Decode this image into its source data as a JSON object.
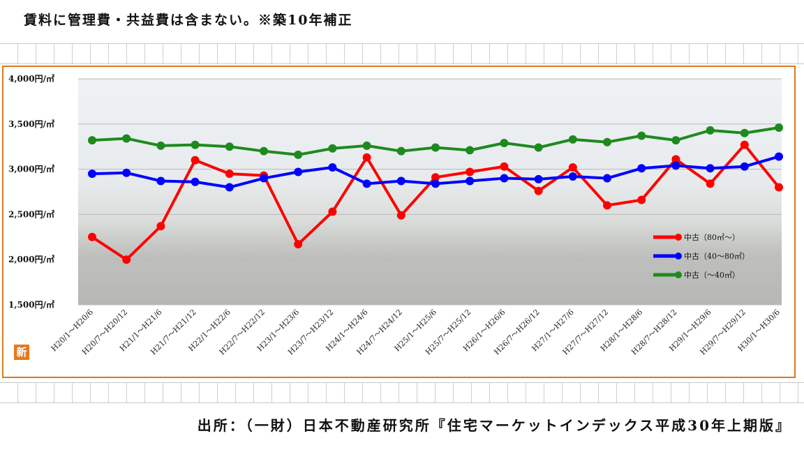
{
  "header": {
    "note": "賃料に管理費・共益費は含まない。※築10年補正"
  },
  "badge": {
    "label": "新"
  },
  "footer": {
    "source": "出所：（一財）日本不動産研究所『住宅マーケットインデックス平成30年上期版』"
  },
  "chart_data": {
    "type": "line",
    "title": "",
    "xlabel": "",
    "ylabel": "",
    "ylim": [
      1500,
      4000
    ],
    "yticks": [
      {
        "value": 4000,
        "label": "4,000円/㎡"
      },
      {
        "value": 3500,
        "label": "3,500円/㎡"
      },
      {
        "value": 3000,
        "label": "3,000円/㎡"
      },
      {
        "value": 2500,
        "label": "2,500円/㎡"
      },
      {
        "value": 2000,
        "label": "2,000円/㎡"
      },
      {
        "value": 1500,
        "label": "1,500円/㎡"
      }
    ],
    "grid": true,
    "legend_position": "right",
    "categories": [
      "H20/1～H20/6",
      "H20/7～H20/12",
      "H21/1～H21/6",
      "H21/7～H21/12",
      "H22/1～H22/6",
      "H22/7～H22/12",
      "H23/1～H23/6",
      "H23/7～H23/12",
      "H24/1～H24/6",
      "H24/7～H24/12",
      "H25/1～H25/6",
      "H25/7～H25/12",
      "H26/1～H26/6",
      "H26/7～H26/12",
      "H27/1～H27/6",
      "H27/7～H27/12",
      "H28/1～H28/6",
      "H28/7～H28/12",
      "H29/1～H29/6",
      "H29/7～H29/12",
      "H30/1～H30/6"
    ],
    "series": [
      {
        "name": "中古（80㎡～）",
        "color": "#ff0000",
        "values": [
          2250,
          2000,
          2370,
          3100,
          2950,
          2930,
          2170,
          2530,
          3130,
          2490,
          2910,
          2970,
          3030,
          2760,
          3020,
          2600,
          2660,
          3110,
          2840,
          3270,
          2800
        ]
      },
      {
        "name": "中古（40～80㎡）",
        "color": "#0000ff",
        "values": [
          2950,
          2960,
          2870,
          2860,
          2800,
          2900,
          2970,
          3020,
          2840,
          2870,
          2840,
          2870,
          2900,
          2890,
          2920,
          2900,
          3010,
          3040,
          3010,
          3030,
          3140
        ]
      },
      {
        "name": "中古（～40㎡）",
        "color": "#1e8a1e",
        "values": [
          3320,
          3340,
          3260,
          3270,
          3250,
          3200,
          3160,
          3230,
          3260,
          3200,
          3240,
          3210,
          3290,
          3240,
          3330,
          3300,
          3370,
          3320,
          3430,
          3400,
          3460
        ]
      }
    ]
  }
}
